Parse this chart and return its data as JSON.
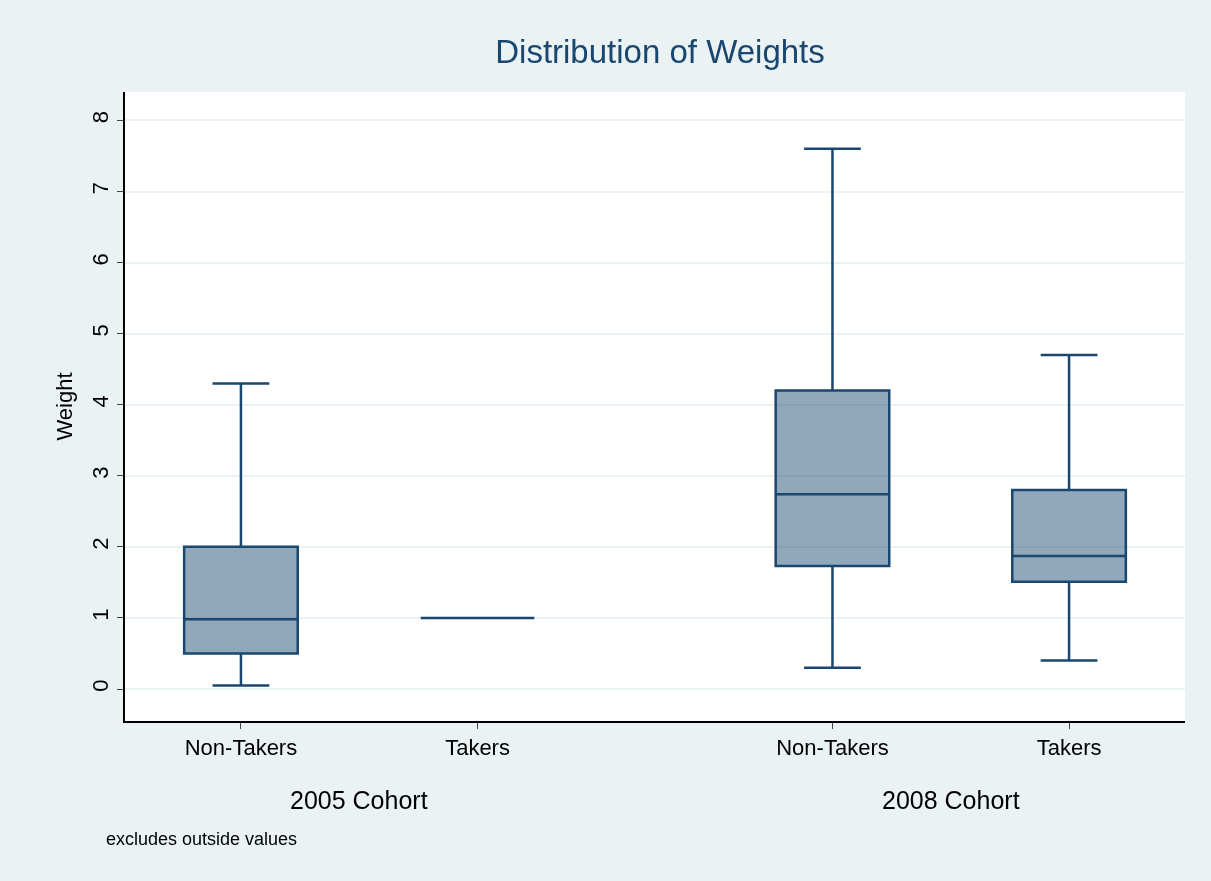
{
  "chart_data": {
    "type": "box",
    "title": "Distribution of Weights",
    "ylabel": "Weight",
    "categories": [
      "Non-Takers",
      "Takers",
      "Non-Takers",
      "Takers"
    ],
    "boxes": [
      {
        "low": 0.05,
        "q1": 0.5,
        "median": 0.98,
        "q3": 2.0,
        "high": 4.3
      },
      {
        "low": 1.0,
        "q1": 1.0,
        "median": 1.0,
        "q3": 1.0,
        "high": 1.0
      },
      {
        "low": 0.3,
        "q1": 1.73,
        "median": 2.74,
        "q3": 4.2,
        "high": 7.6
      },
      {
        "low": 0.4,
        "q1": 1.51,
        "median": 1.87,
        "q3": 2.8,
        "high": 4.7
      }
    ],
    "color": "#1a476f",
    "ylim": [
      -0.45,
      8.4
    ],
    "yticks": [
      0,
      1,
      2,
      3,
      4,
      5,
      6,
      7,
      8
    ],
    "grid": "y",
    "annotations": [
      "2005 Cohort",
      "2008 Cohort",
      "excludes outside values"
    ]
  }
}
